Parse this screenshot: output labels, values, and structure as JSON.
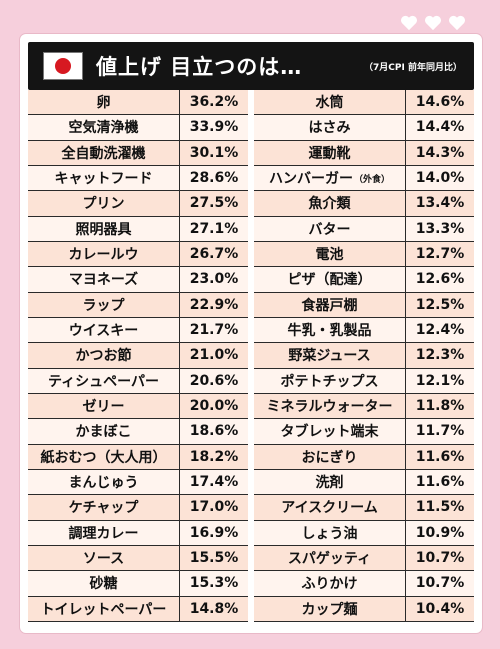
{
  "header": {
    "title": "値上げ 目立つのは…",
    "subtitle": "（7月CPI 前年同月比）"
  },
  "colors": {
    "background": "#f6cfdc",
    "header": "#141414",
    "row_odd": "#fce3d6",
    "row_even": "#fff4ee",
    "flag_red": "#d71921"
  },
  "icons": {
    "flag": "japan-flag-icon",
    "hearts": "heart-icon"
  },
  "left_items": [
    {
      "name": "卵",
      "value": "36.2%"
    },
    {
      "name": "空気清浄機",
      "value": "33.9%"
    },
    {
      "name": "全自動洗濯機",
      "value": "30.1%"
    },
    {
      "name": "キャットフード",
      "value": "28.6%"
    },
    {
      "name": "プリン",
      "value": "27.5%"
    },
    {
      "name": "照明器具",
      "value": "27.1%"
    },
    {
      "name": "カレールウ",
      "value": "26.7%"
    },
    {
      "name": "マヨネーズ",
      "value": "23.0%"
    },
    {
      "name": "ラップ",
      "value": "22.9%"
    },
    {
      "name": "ウイスキー",
      "value": "21.7%"
    },
    {
      "name": "かつお節",
      "value": "21.0%"
    },
    {
      "name": "ティシュペーパー",
      "value": "20.6%"
    },
    {
      "name": "ゼリー",
      "value": "20.0%"
    },
    {
      "name": "かまぼこ",
      "value": "18.6%"
    },
    {
      "name": "紙おむつ（大人用）",
      "value": "18.2%"
    },
    {
      "name": "まんじゅう",
      "value": "17.4%"
    },
    {
      "name": "ケチャップ",
      "value": "17.0%"
    },
    {
      "name": "調理カレー",
      "value": "16.9%"
    },
    {
      "name": "ソース",
      "value": "15.5%"
    },
    {
      "name": "砂糖",
      "value": "15.3%"
    },
    {
      "name": "トイレットペーパー",
      "value": "14.8%"
    }
  ],
  "right_items": [
    {
      "name": "水筒",
      "value": "14.6%"
    },
    {
      "name": "はさみ",
      "value": "14.4%"
    },
    {
      "name": "運動靴",
      "value": "14.3%"
    },
    {
      "name": "ハンバーガー",
      "note": "（外食）",
      "value": "14.0%"
    },
    {
      "name": "魚介類",
      "value": "13.4%"
    },
    {
      "name": "バター",
      "value": "13.3%"
    },
    {
      "name": "電池",
      "value": "12.7%"
    },
    {
      "name": "ピザ（配達）",
      "value": "12.6%"
    },
    {
      "name": "食器戸棚",
      "value": "12.5%"
    },
    {
      "name": "牛乳・乳製品",
      "value": "12.4%"
    },
    {
      "name": "野菜ジュース",
      "value": "12.3%"
    },
    {
      "name": "ポテトチップス",
      "value": "12.1%"
    },
    {
      "name": "ミネラルウォーター",
      "value": "11.8%"
    },
    {
      "name": "タブレット端末",
      "value": "11.7%"
    },
    {
      "name": "おにぎり",
      "value": "11.6%"
    },
    {
      "name": "洗剤",
      "value": "11.6%"
    },
    {
      "name": "アイスクリーム",
      "value": "11.5%"
    },
    {
      "name": "しょう油",
      "value": "10.9%"
    },
    {
      "name": "スパゲッティ",
      "value": "10.7%"
    },
    {
      "name": "ふりかけ",
      "value": "10.7%"
    },
    {
      "name": "カップ麺",
      "value": "10.4%"
    }
  ]
}
